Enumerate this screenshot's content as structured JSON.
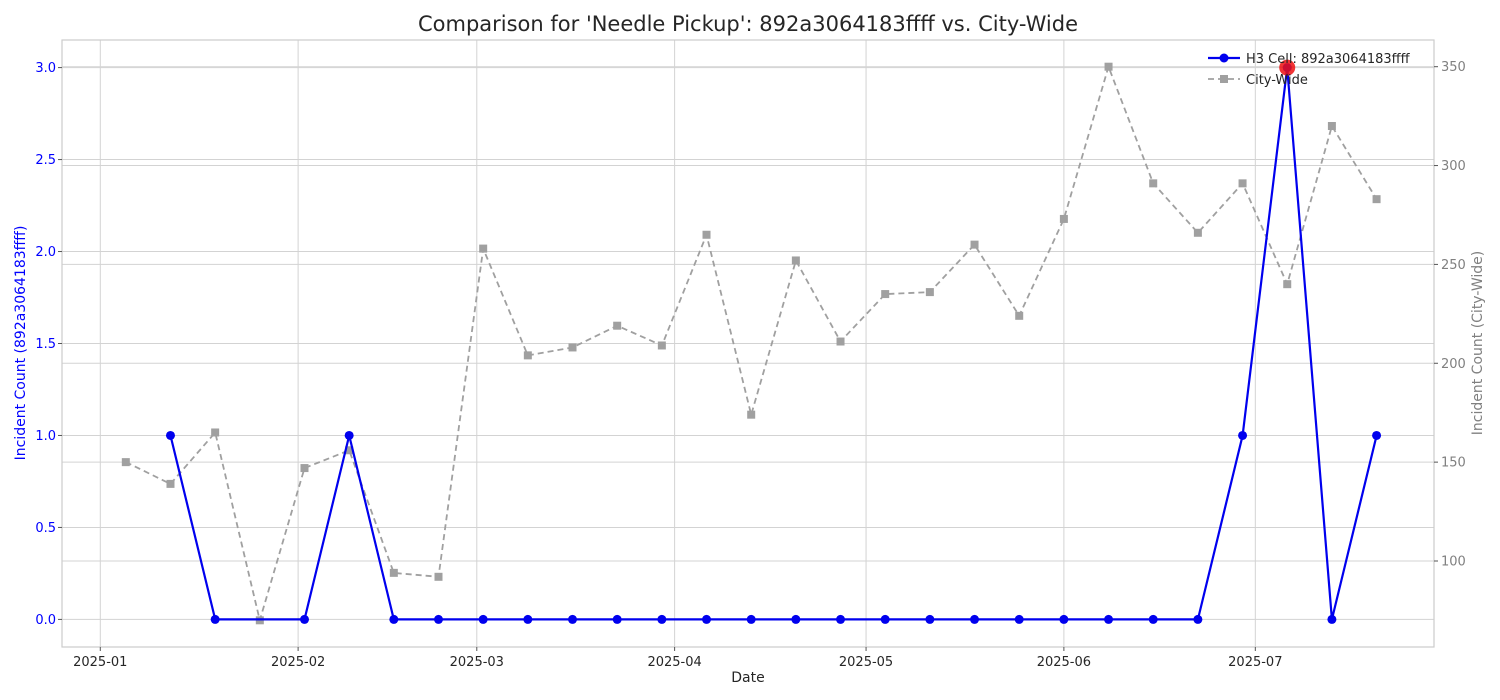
{
  "chart_data": {
    "type": "line",
    "title": "Comparison for 'Needle Pickup': 892a3064183ffff vs. City-Wide",
    "xlabel": "Date",
    "ylabel_left": "Incident Count (892a3064183ffff)",
    "ylabel_right": "Incident Count (City-Wide)",
    "x_tick_labels": [
      "2025-01",
      "2025-02",
      "2025-03",
      "2025-04",
      "2025-05",
      "2025-06",
      "2025-07"
    ],
    "y_left_tick_labels": [
      "0.0",
      "0.5",
      "1.0",
      "1.5",
      "2.0",
      "2.5",
      "3.0"
    ],
    "y_right_tick_labels": [
      "100",
      "150",
      "200",
      "250",
      "300",
      "350"
    ],
    "ylim_left": [
      -0.15,
      3.15
    ],
    "ylim_right": [
      56.5,
      363.5
    ],
    "grid": true,
    "legend_position": "top-right",
    "colors": {
      "cell": "#0000ee",
      "citywide": "#a0a0a0",
      "highlight": "#ee1111",
      "left_axis": "#0000ff",
      "right_axis": "#808080"
    },
    "series": [
      {
        "name": "H3 Cell: 892a3064183ffff",
        "axis": "left",
        "x": [
          "2025-01-12",
          "2025-01-19",
          "2025-02-02",
          "2025-02-09",
          "2025-02-16",
          "2025-02-23",
          "2025-03-02",
          "2025-03-09",
          "2025-03-16",
          "2025-03-23",
          "2025-03-30",
          "2025-04-06",
          "2025-04-13",
          "2025-04-20",
          "2025-04-27",
          "2025-05-04",
          "2025-05-11",
          "2025-05-18",
          "2025-05-25",
          "2025-06-01",
          "2025-06-08",
          "2025-06-15",
          "2025-06-22",
          "2025-06-29",
          "2025-07-06",
          "2025-07-13",
          "2025-07-20"
        ],
        "values": [
          1,
          0,
          0,
          1,
          0,
          0,
          0,
          0,
          0,
          0,
          0,
          0,
          0,
          0,
          0,
          0,
          0,
          0,
          0,
          0,
          0,
          0,
          0,
          1,
          3,
          0,
          1
        ]
      },
      {
        "name": "City-Wide",
        "axis": "right",
        "x": [
          "2025-01-05",
          "2025-01-12",
          "2025-01-19",
          "2025-01-26",
          "2025-02-02",
          "2025-02-09",
          "2025-02-16",
          "2025-02-23",
          "2025-03-02",
          "2025-03-09",
          "2025-03-16",
          "2025-03-23",
          "2025-03-30",
          "2025-04-06",
          "2025-04-13",
          "2025-04-20",
          "2025-04-27",
          "2025-05-04",
          "2025-05-11",
          "2025-05-18",
          "2025-05-25",
          "2025-06-01",
          "2025-06-08",
          "2025-06-15",
          "2025-06-22",
          "2025-06-29",
          "2025-07-06",
          "2025-07-13",
          "2025-07-20"
        ],
        "values": [
          150,
          139,
          165,
          70,
          147,
          156,
          94,
          92,
          258,
          204,
          208,
          219,
          209,
          265,
          174,
          252,
          211,
          235,
          236,
          260,
          224,
          273,
          350,
          291,
          266,
          291,
          240,
          320,
          283
        ]
      }
    ],
    "highlight": {
      "x": "2025-07-06",
      "value": 3
    }
  }
}
